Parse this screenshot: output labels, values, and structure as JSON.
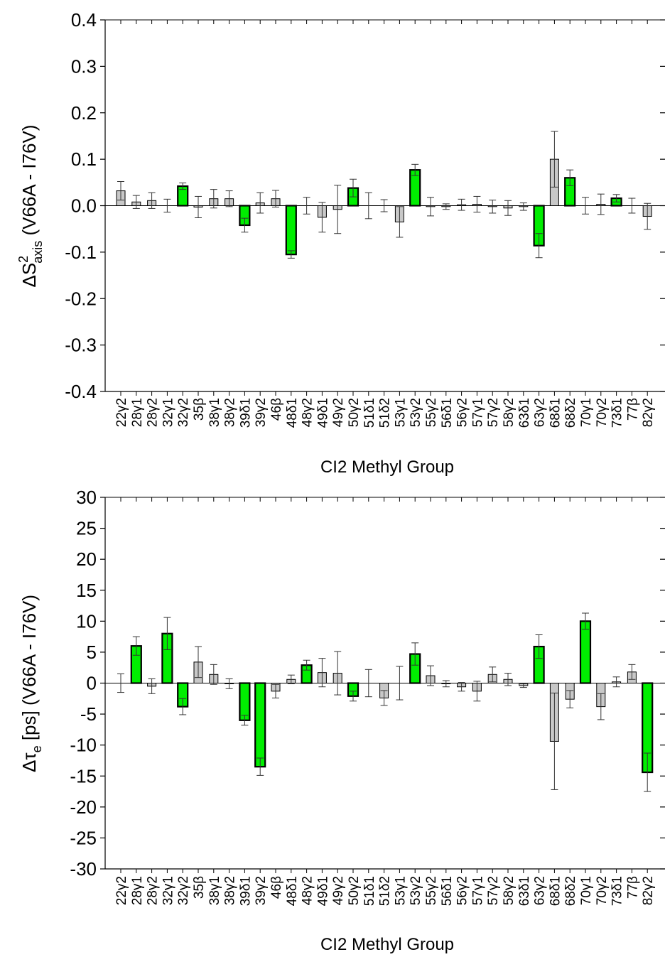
{
  "figure": {
    "panels": [
      {
        "id": "top",
        "xlabel": "CI2 Methyl Group",
        "ylabel_parts": {
          "pre": "ΔS",
          "sup": "2",
          "sub": "axis",
          "post": " (V66A - I76V)"
        },
        "ytick_labels": [
          "-0.4",
          "-0.3",
          "-0.2",
          "-0.1",
          "0.0",
          "0.1",
          "0.2",
          "0.3",
          "0.4"
        ]
      },
      {
        "id": "bottom",
        "xlabel": "CI2 Methyl Group",
        "ylabel_parts": {
          "pre": "Δτ",
          "sub": "e",
          "post": " [ps] (V66A - I76V)"
        },
        "ytick_labels": [
          "-30",
          "-25",
          "-20",
          "-15",
          "-10",
          "-5",
          "0",
          "5",
          "10",
          "15",
          "20",
          "25",
          "30"
        ]
      }
    ]
  },
  "colors": {
    "highlight": "#00ee00",
    "normal": "#c8c8c8",
    "axis": "#000000"
  },
  "chart_data": [
    {
      "type": "bar",
      "xlabel": "CI2 Methyl Group",
      "ylabel": "ΔS²axis (V66A - I76V)",
      "ylim": [
        -0.4,
        0.4
      ],
      "yticks": [
        -0.4,
        -0.3,
        -0.2,
        -0.1,
        0.0,
        0.1,
        0.2,
        0.3,
        0.4
      ],
      "categories": [
        "22γ2",
        "28γ1",
        "28γ2",
        "32γ1",
        "32γ2",
        "35β",
        "38γ1",
        "38γ2",
        "39δ1",
        "39γ2",
        "46β",
        "48δ1",
        "48γ2",
        "49δ1",
        "49γ2",
        "50γ2",
        "51δ1",
        "51δ2",
        "53γ1",
        "53γ2",
        "55γ2",
        "56δ1",
        "56γ2",
        "57γ1",
        "57γ2",
        "58γ2",
        "63δ1",
        "63γ2",
        "68δ1",
        "68δ2",
        "70γ1",
        "70γ2",
        "73δ1",
        "77β",
        "82γ2"
      ],
      "values": [
        0.032,
        0.008,
        0.011,
        0.0,
        0.042,
        -0.003,
        0.015,
        0.015,
        -0.042,
        0.006,
        0.015,
        -0.105,
        0.0,
        -0.025,
        -0.008,
        0.038,
        0.0,
        0.0,
        -0.035,
        0.077,
        -0.002,
        -0.002,
        0.002,
        0.003,
        -0.002,
        -0.005,
        -0.002,
        -0.086,
        0.1,
        0.06,
        0.0,
        0.003,
        0.016,
        0.0,
        -0.023
      ],
      "errors": [
        0.02,
        0.014,
        0.017,
        0.014,
        0.007,
        0.023,
        0.02,
        0.017,
        0.015,
        0.022,
        0.018,
        0.008,
        0.018,
        0.032,
        0.052,
        0.019,
        0.028,
        0.013,
        0.033,
        0.012,
        0.02,
        0.006,
        0.012,
        0.017,
        0.014,
        0.016,
        0.008,
        0.026,
        0.06,
        0.017,
        0.018,
        0.022,
        0.008,
        0.016,
        0.028
      ],
      "highlighted": [
        false,
        false,
        false,
        false,
        true,
        false,
        false,
        false,
        true,
        false,
        false,
        true,
        false,
        false,
        false,
        true,
        false,
        false,
        false,
        true,
        false,
        false,
        false,
        false,
        false,
        false,
        false,
        true,
        false,
        true,
        false,
        false,
        true,
        false,
        false
      ]
    },
    {
      "type": "bar",
      "xlabel": "CI2 Methyl Group",
      "ylabel": "Δτe [ps] (V66A - I76V)",
      "ylim": [
        -30,
        30
      ],
      "yticks": [
        -30,
        -25,
        -20,
        -15,
        -10,
        -5,
        0,
        5,
        10,
        15,
        20,
        25,
        30
      ],
      "categories": [
        "22γ2",
        "28γ1",
        "28γ2",
        "32γ1",
        "32γ2",
        "35β",
        "38γ1",
        "38γ2",
        "39δ1",
        "39γ2",
        "46β",
        "48δ1",
        "48γ2",
        "49δ1",
        "49γ2",
        "50γ2",
        "51δ1",
        "51δ2",
        "53γ1",
        "53γ2",
        "55γ2",
        "56δ1",
        "56γ2",
        "57γ1",
        "57γ2",
        "58γ2",
        "63δ1",
        "63γ2",
        "68δ1",
        "68δ2",
        "70γ1",
        "70γ2",
        "73δ1",
        "77β",
        "82γ2"
      ],
      "values": [
        0.0,
        6.0,
        -0.5,
        8.0,
        -3.8,
        3.4,
        1.4,
        -0.1,
        -6.0,
        -13.5,
        -1.3,
        0.6,
        2.9,
        1.7,
        1.6,
        -2.1,
        0.0,
        -2.4,
        0.0,
        4.7,
        1.2,
        -0.1,
        -0.6,
        -1.3,
        1.4,
        0.6,
        -0.4,
        5.9,
        -9.4,
        -2.6,
        10.0,
        -3.8,
        0.2,
        1.8,
        -14.4
      ],
      "errors": [
        1.5,
        1.5,
        1.2,
        2.6,
        1.3,
        2.5,
        1.6,
        0.8,
        0.8,
        1.4,
        1.1,
        0.7,
        0.8,
        2.3,
        3.5,
        0.8,
        2.2,
        1.2,
        2.7,
        1.8,
        1.6,
        0.5,
        0.7,
        1.6,
        1.2,
        1.0,
        0.3,
        1.9,
        7.8,
        1.4,
        1.3,
        2.1,
        0.8,
        1.2,
        3.1
      ],
      "highlighted": [
        false,
        true,
        false,
        true,
        true,
        false,
        false,
        false,
        true,
        true,
        false,
        false,
        true,
        false,
        false,
        true,
        false,
        false,
        false,
        true,
        false,
        false,
        false,
        false,
        false,
        false,
        false,
        true,
        false,
        false,
        true,
        false,
        false,
        false,
        true
      ]
    }
  ]
}
